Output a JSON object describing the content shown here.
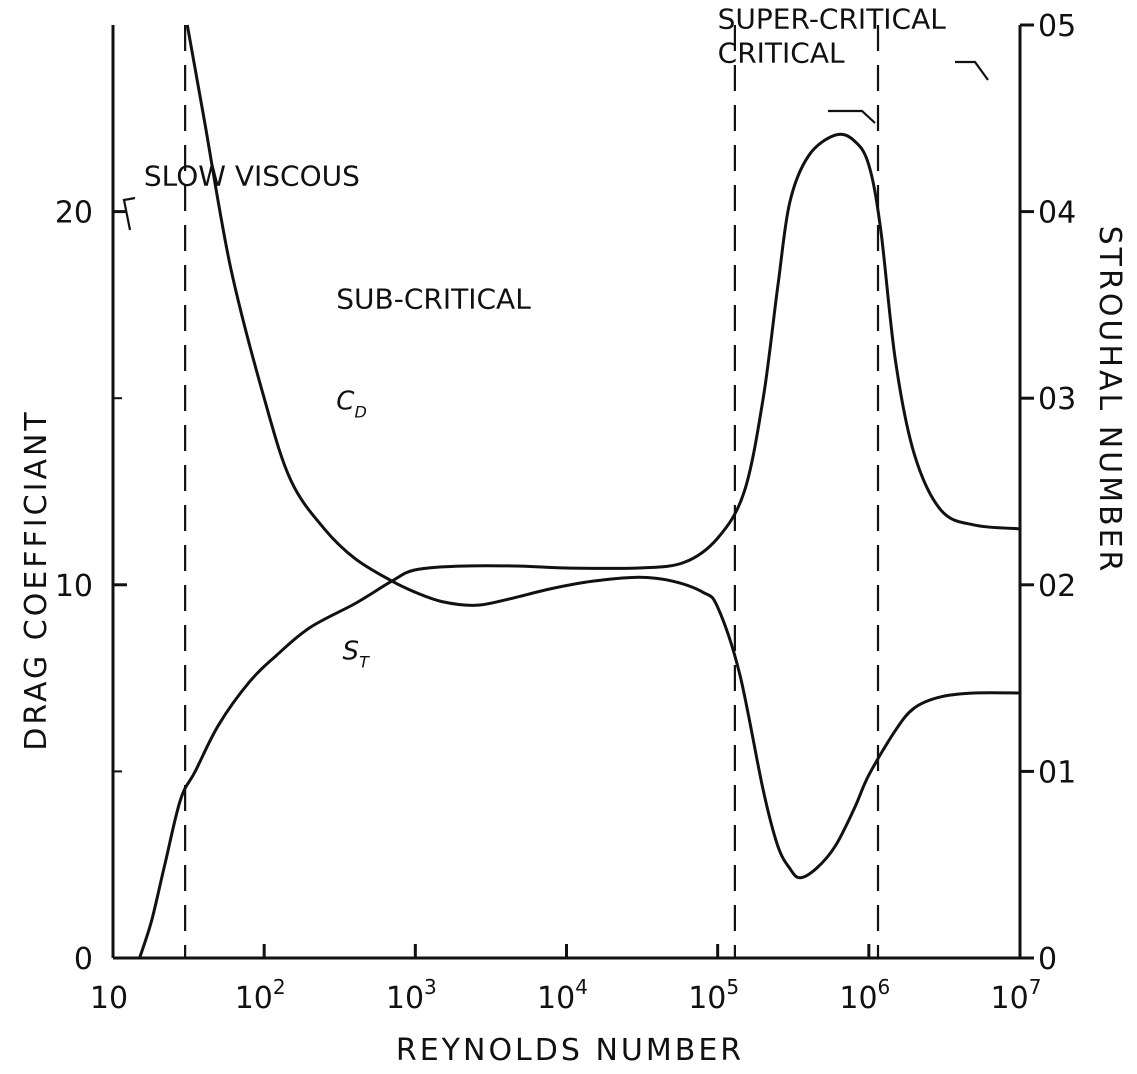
{
  "chart_data": {
    "type": "line",
    "xlabel": "REYNOLDS NUMBER",
    "ylabel": "DRAG COEFFICIANT",
    "y2label": "STROUHAL NUMBER",
    "x_scale": "log",
    "xlim": [
      10,
      10000000
    ],
    "ylim": [
      0,
      25
    ],
    "y2lim": [
      0,
      0.5
    ],
    "x_ticks": [
      {
        "value": 10,
        "base": "10",
        "exp": ""
      },
      {
        "value": 100,
        "base": "10",
        "exp": "2"
      },
      {
        "value": 1000,
        "base": "10",
        "exp": "3"
      },
      {
        "value": 10000,
        "base": "10",
        "exp": "4"
      },
      {
        "value": 100000,
        "base": "10",
        "exp": "5"
      },
      {
        "value": 1000000,
        "base": "10",
        "exp": "6"
      },
      {
        "value": 10000000,
        "base": "10",
        "exp": "7"
      }
    ],
    "y_ticks": [
      {
        "value": 0,
        "label": "0"
      },
      {
        "value": 10,
        "label": "10"
      },
      {
        "value": 20,
        "label": "20"
      }
    ],
    "y2_ticks": [
      {
        "value": 0,
        "label": "0"
      },
      {
        "value": 0.1,
        "label": "01"
      },
      {
        "value": 0.2,
        "label": "02"
      },
      {
        "value": 0.3,
        "label": "03"
      },
      {
        "value": 0.4,
        "label": "04"
      },
      {
        "value": 0.5,
        "label": "05"
      }
    ],
    "grid": false,
    "series": [
      {
        "name": "C_D",
        "axis": "left",
        "points": [
          [
            31,
            25.0
          ],
          [
            40,
            22.5
          ],
          [
            60,
            18.5
          ],
          [
            100,
            15.0
          ],
          [
            150,
            12.8
          ],
          [
            250,
            11.5
          ],
          [
            400,
            10.7
          ],
          [
            700,
            10.1
          ],
          [
            1000,
            9.8
          ],
          [
            1500,
            9.55
          ],
          [
            2500,
            9.45
          ],
          [
            4000,
            9.6
          ],
          [
            8000,
            9.9
          ],
          [
            15000,
            10.1
          ],
          [
            30000,
            10.2
          ],
          [
            50000,
            10.1
          ],
          [
            80000,
            9.8
          ],
          [
            100000,
            9.4
          ],
          [
            140000,
            7.6
          ],
          [
            200000,
            4.5
          ],
          [
            250000,
            3.0
          ],
          [
            300000,
            2.4
          ],
          [
            350000,
            2.15
          ],
          [
            450000,
            2.4
          ],
          [
            600000,
            3.0
          ],
          [
            800000,
            4.0
          ],
          [
            1000000,
            4.9
          ],
          [
            1500000,
            6.1
          ],
          [
            2000000,
            6.7
          ],
          [
            3000000,
            7.0
          ],
          [
            5000000,
            7.1
          ],
          [
            10000000,
            7.1
          ]
        ]
      },
      {
        "name": "S_T",
        "axis": "right",
        "points": [
          [
            15,
            0.0
          ],
          [
            18,
            0.02
          ],
          [
            22,
            0.05
          ],
          [
            28,
            0.085
          ],
          [
            35,
            0.1
          ],
          [
            50,
            0.125
          ],
          [
            80,
            0.148
          ],
          [
            120,
            0.162
          ],
          [
            200,
            0.177
          ],
          [
            400,
            0.19
          ],
          [
            700,
            0.202
          ],
          [
            1000,
            0.208
          ],
          [
            2000,
            0.21
          ],
          [
            5000,
            0.21
          ],
          [
            10000,
            0.209
          ],
          [
            30000,
            0.209
          ],
          [
            60000,
            0.212
          ],
          [
            100000,
            0.225
          ],
          [
            150000,
            0.25
          ],
          [
            200000,
            0.3
          ],
          [
            250000,
            0.36
          ],
          [
            300000,
            0.405
          ],
          [
            400000,
            0.43
          ],
          [
            600000,
            0.441
          ],
          [
            800000,
            0.438
          ],
          [
            1000000,
            0.425
          ],
          [
            1200000,
            0.39
          ],
          [
            1500000,
            0.32
          ],
          [
            2000000,
            0.27
          ],
          [
            3000000,
            0.24
          ],
          [
            5000000,
            0.232
          ],
          [
            10000000,
            0.23
          ]
        ]
      }
    ],
    "vertical_dashed_lines": [
      30,
      130000,
      1150000
    ],
    "curve_labels": [
      {
        "text": "C",
        "sub": "D",
        "x": 300,
        "y": 14.7
      },
      {
        "text": "S",
        "sub": "T",
        "x": 330,
        "y": 8.0
      }
    ],
    "annotations": [
      {
        "text": "SLOW VISCOUS",
        "x": 16.0,
        "y": 20.7
      },
      {
        "text": "SUB-CRITICAL",
        "x": 300,
        "y": 17.4
      },
      {
        "text": "CRITICAL",
        "x": 100000,
        "y": 24.0
      },
      {
        "text": "SUPER-CRITICAL",
        "x": 100000,
        "y": 24.9
      }
    ]
  }
}
